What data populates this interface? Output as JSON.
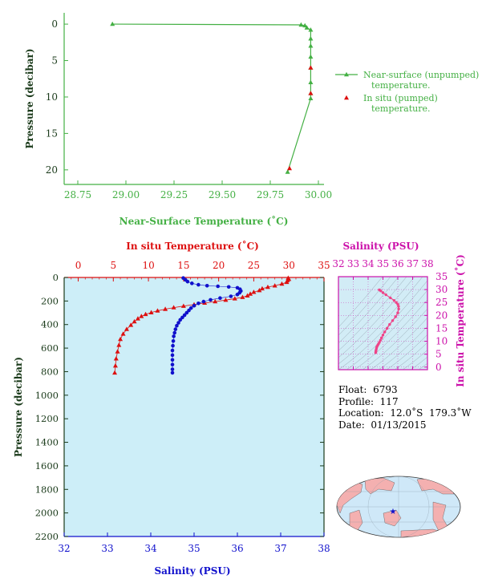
{
  "colors": {
    "green": "#44b044",
    "red": "#dd1010",
    "blue": "#1010cc",
    "magenta": "#cc11aa",
    "pink": "#ee4488",
    "axis_dark": "#1a3a1a",
    "panel_bg": "#cdeef8",
    "inset_bg": "#d2ecf6",
    "land": "#f4b0b0",
    "ocean": "#cfe8f8"
  },
  "chart_data": [
    {
      "type": "line",
      "id": "near-surface",
      "xlabel": "Near-Surface Temperature (˚C)",
      "ylabel": "Pressure (decibar)",
      "xlim": [
        28.75,
        30.0
      ],
      "ylim": [
        22,
        -1
      ],
      "xticks": [
        "28.75",
        "29.00",
        "29.25",
        "29.50",
        "29.75",
        "30.00"
      ],
      "yticks": [
        "0",
        "5",
        "10",
        "15",
        "20"
      ],
      "legend_position": "right",
      "series": [
        {
          "name": "Near-surface (unpumped) temperature.",
          "marker": "triangle",
          "color": "#44b044",
          "points": [
            [
              28.93,
              0.0
            ],
            [
              29.91,
              0.1
            ],
            [
              29.93,
              0.2
            ],
            [
              29.94,
              0.5
            ],
            [
              29.96,
              0.8
            ],
            [
              29.96,
              2.0
            ],
            [
              29.96,
              3.0
            ],
            [
              29.96,
              4.5
            ],
            [
              29.96,
              6.0
            ],
            [
              29.96,
              8.0
            ],
            [
              29.96,
              9.5
            ],
            [
              29.96,
              10.2
            ],
            [
              29.84,
              20.3
            ]
          ]
        },
        {
          "name": "In situ (pumped) temperature.",
          "marker": "triangle",
          "color": "#dd1010",
          "points": [
            [
              29.96,
              6.0
            ],
            [
              29.96,
              9.5
            ],
            [
              29.85,
              19.8
            ]
          ]
        }
      ]
    },
    {
      "type": "scatter",
      "id": "profile",
      "ylabel": "Pressure (decibar)",
      "ylim": [
        2200,
        0
      ],
      "yticks": [
        "0",
        "200",
        "400",
        "600",
        "800",
        "1000",
        "1200",
        "1400",
        "1600",
        "1800",
        "2000",
        "2200"
      ],
      "top_axis": {
        "label": "In situ Temperature (˚C)",
        "range": [
          -2,
          35
        ],
        "ticks": [
          "0",
          "5",
          "10",
          "15",
          "20",
          "25",
          "30",
          "35"
        ]
      },
      "bottom_axis": {
        "label": "Salinity (PSU)",
        "range": [
          32,
          38
        ],
        "ticks": [
          "32",
          "33",
          "34",
          "35",
          "36",
          "37",
          "38"
        ]
      },
      "series": [
        {
          "name": "In situ Temperature",
          "axis": "top",
          "marker": "triangle",
          "color": "#dd1010",
          "points": [
            [
              29.9,
              5
            ],
            [
              30.0,
              15
            ],
            [
              29.8,
              25
            ],
            [
              29.7,
              40
            ],
            [
              29.0,
              55
            ],
            [
              28.0,
              70
            ],
            [
              27.0,
              82
            ],
            [
              26.2,
              95
            ],
            [
              25.8,
              110
            ],
            [
              25.0,
              125
            ],
            [
              24.5,
              140
            ],
            [
              24.1,
              155
            ],
            [
              23.4,
              168
            ],
            [
              22.3,
              180
            ],
            [
              21.0,
              192
            ],
            [
              19.5,
              205
            ],
            [
              18.0,
              217
            ],
            [
              16.5,
              230
            ],
            [
              15.0,
              243
            ],
            [
              13.6,
              256
            ],
            [
              12.4,
              269
            ],
            [
              11.3,
              283
            ],
            [
              10.4,
              298
            ],
            [
              9.6,
              313
            ],
            [
              9.0,
              330
            ],
            [
              8.5,
              350
            ],
            [
              8.0,
              375
            ],
            [
              7.5,
              405
            ],
            [
              6.9,
              440
            ],
            [
              6.4,
              480
            ],
            [
              6.0,
              525
            ],
            [
              5.8,
              575
            ],
            [
              5.6,
              630
            ],
            [
              5.4,
              690
            ],
            [
              5.3,
              750
            ],
            [
              5.2,
              810
            ]
          ]
        },
        {
          "name": "Salinity",
          "axis": "bottom",
          "marker": "dot",
          "color": "#1010cc",
          "points": [
            [
              34.75,
              5
            ],
            [
              34.8,
              20
            ],
            [
              34.85,
              35
            ],
            [
              34.95,
              50
            ],
            [
              35.1,
              62
            ],
            [
              35.3,
              70
            ],
            [
              35.55,
              75
            ],
            [
              35.8,
              80
            ],
            [
              36.0,
              88
            ],
            [
              36.06,
              100
            ],
            [
              36.08,
              115
            ],
            [
              36.05,
              130
            ],
            [
              36.0,
              145
            ],
            [
              35.85,
              160
            ],
            [
              35.6,
              175
            ],
            [
              35.38,
              190
            ],
            [
              35.22,
              205
            ],
            [
              35.1,
              220
            ],
            [
              35.0,
              240
            ],
            [
              34.93,
              260
            ],
            [
              34.88,
              280
            ],
            [
              34.83,
              300
            ],
            [
              34.78,
              320
            ],
            [
              34.73,
              340
            ],
            [
              34.68,
              360
            ],
            [
              34.64,
              385
            ],
            [
              34.6,
              410
            ],
            [
              34.57,
              440
            ],
            [
              34.55,
              470
            ],
            [
              34.53,
              500
            ],
            [
              34.52,
              540
            ],
            [
              34.51,
              580
            ],
            [
              34.5,
              620
            ],
            [
              34.5,
              660
            ],
            [
              34.5,
              700
            ],
            [
              34.5,
              740
            ],
            [
              34.5,
              780
            ],
            [
              34.5,
              810
            ]
          ]
        }
      ]
    },
    {
      "type": "scatter",
      "id": "ts-diagram",
      "xlabel": "Salinity (PSU)",
      "ylabel": "In situ Temperature (˚C)",
      "xlim": [
        32,
        38
      ],
      "ylim": [
        -1,
        35
      ],
      "xticks": [
        "32",
        "33",
        "34",
        "35",
        "36",
        "37",
        "38"
      ],
      "yticks": [
        "0",
        "5",
        "10",
        "15",
        "20",
        "25",
        "30",
        "35"
      ],
      "series": [
        {
          "name": "T-S",
          "marker": "dot",
          "color": "#ee4488",
          "points": [
            [
              34.75,
              29.9
            ],
            [
              34.85,
              29.5
            ],
            [
              35.0,
              28.8
            ],
            [
              35.2,
              28.0
            ],
            [
              35.5,
              26.8
            ],
            [
              35.75,
              25.8
            ],
            [
              35.9,
              25.0
            ],
            [
              36.0,
              24.3
            ],
            [
              36.05,
              23.5
            ],
            [
              36.06,
              22.5
            ],
            [
              36.0,
              21.0
            ],
            [
              35.85,
              19.5
            ],
            [
              35.65,
              18.0
            ],
            [
              35.45,
              16.5
            ],
            [
              35.28,
              15.0
            ],
            [
              35.12,
              13.6
            ],
            [
              35.0,
              12.4
            ],
            [
              34.9,
              11.3
            ],
            [
              34.83,
              10.4
            ],
            [
              34.76,
              9.6
            ],
            [
              34.7,
              9.0
            ],
            [
              34.65,
              8.5
            ],
            [
              34.6,
              8.0
            ],
            [
              34.57,
              7.5
            ],
            [
              34.55,
              6.9
            ],
            [
              34.53,
              6.4
            ],
            [
              34.52,
              6.0
            ],
            [
              34.51,
              5.6
            ]
          ]
        }
      ]
    }
  ],
  "float_info": {
    "float_label": "Float:",
    "float_value": "6793",
    "profile_label": "Profile:",
    "profile_value": "117",
    "location_label": "Location:",
    "location_value": "12.0˚S  179.3˚W",
    "date_label": "Date:",
    "date_value": "01/13/2015"
  },
  "map": {
    "marker": "star",
    "marker_color": "#1010cc"
  }
}
